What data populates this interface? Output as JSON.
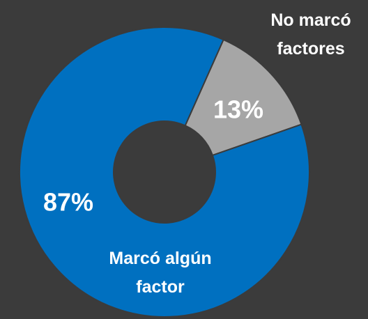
{
  "chart_data": {
    "type": "donut",
    "categories": [
      "No marcó factores",
      "Marcó algún factor"
    ],
    "values": [
      13,
      87
    ],
    "value_labels": [
      "13%",
      "87%"
    ],
    "colors": [
      "#a6a6a6",
      "#0070c0"
    ]
  }
}
